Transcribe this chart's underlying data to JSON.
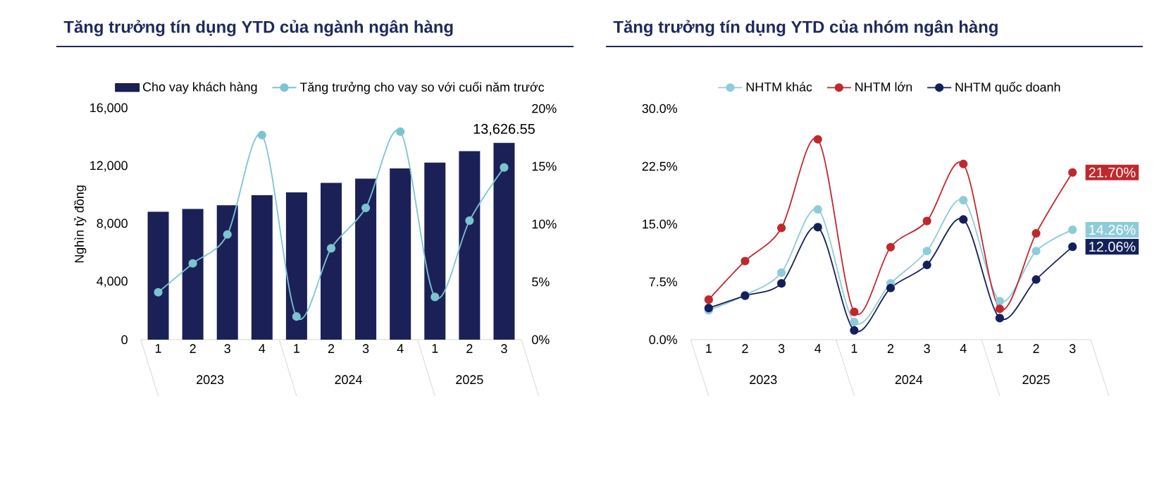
{
  "chart_data": [
    {
      "type": "bar",
      "title": "Tăng trưởng tín dụng YTD của ngành ngân hàng",
      "ylabel": "Nghìn tỷ đồng",
      "categories": [
        "1",
        "2",
        "3",
        "4",
        "1",
        "2",
        "3",
        "4",
        "1",
        "2",
        "3"
      ],
      "annotations": [
        "2023",
        "2024",
        "2025"
      ],
      "series": [
        {
          "name": "Cho vay khách hàng",
          "color": "#1b2157",
          "values": [
            8850,
            9050,
            9300,
            10000,
            10200,
            10850,
            11150,
            11850,
            12250,
            13050,
            13626.55
          ],
          "value_labels": [
            null,
            null,
            null,
            null,
            null,
            null,
            null,
            null,
            null,
            null,
            "13,626.55"
          ]
        },
        {
          "name": "Tăng trưởng cho vay so với cuối năm trước",
          "type": "line",
          "axis": "y2",
          "color": "#7cc4d0",
          "values": [
            4.1,
            6.6,
            9.1,
            17.7,
            2.0,
            7.9,
            11.4,
            18.0,
            3.7,
            10.3,
            14.9
          ]
        }
      ],
      "ylim": [
        0,
        16000
      ],
      "yticks": [
        {
          "value": 0,
          "label": "0"
        },
        {
          "value": 4000,
          "label": "4,000"
        },
        {
          "value": 8000,
          "label": "8,000"
        },
        {
          "value": 12000,
          "label": "12,000"
        },
        {
          "value": 16000,
          "label": "16,000"
        }
      ],
      "y2lim": [
        0,
        20
      ],
      "y2ticks": [
        {
          "value": 0,
          "label": "0%"
        },
        {
          "value": 5,
          "label": "5%"
        },
        {
          "value": 10,
          "label": "10%"
        },
        {
          "value": 15,
          "label": "15%"
        },
        {
          "value": 20,
          "label": "20%"
        }
      ],
      "legend": "top",
      "marker": "circle"
    },
    {
      "type": "line",
      "title": "Tăng trưởng tín dụng YTD của nhóm ngân hàng",
      "categories": [
        "1",
        "2",
        "3",
        "4",
        "1",
        "2",
        "3",
        "4",
        "1",
        "2",
        "3"
      ],
      "annotations": [
        "2023",
        "2024",
        "2025"
      ],
      "series": [
        {
          "name": "NHTM khác",
          "color": "#8fcbd8",
          "values": [
            3.8,
            5.8,
            8.7,
            16.9,
            2.3,
            7.3,
            11.5,
            18.1,
            5.0,
            11.5,
            14.26
          ],
          "value_labels": [
            null,
            null,
            null,
            null,
            null,
            null,
            null,
            null,
            null,
            null,
            "14.26%"
          ]
        },
        {
          "name": "NHTM lớn",
          "color": "#c0282d",
          "values": [
            5.2,
            10.2,
            14.5,
            26.0,
            3.6,
            12.0,
            15.4,
            22.8,
            4.0,
            13.8,
            21.7
          ],
          "value_labels": [
            null,
            null,
            null,
            null,
            null,
            null,
            null,
            null,
            null,
            null,
            "21.70%"
          ]
        },
        {
          "name": "NHTM quốc doanh",
          "color": "#14205a",
          "values": [
            4.1,
            5.7,
            7.3,
            14.6,
            1.2,
            6.7,
            9.7,
            15.6,
            2.8,
            7.8,
            12.06
          ],
          "value_labels": [
            null,
            null,
            null,
            null,
            null,
            null,
            null,
            null,
            null,
            null,
            "12.06%"
          ]
        }
      ],
      "ylim": [
        0,
        30
      ],
      "yticks": [
        {
          "value": 0,
          "label": "0.0%"
        },
        {
          "value": 7.5,
          "label": "7.5%"
        },
        {
          "value": 15,
          "label": "15.0%"
        },
        {
          "value": 22.5,
          "label": "22.5%"
        },
        {
          "value": 30,
          "label": "30.0%"
        }
      ],
      "legend": "top",
      "marker": "circle"
    }
  ]
}
